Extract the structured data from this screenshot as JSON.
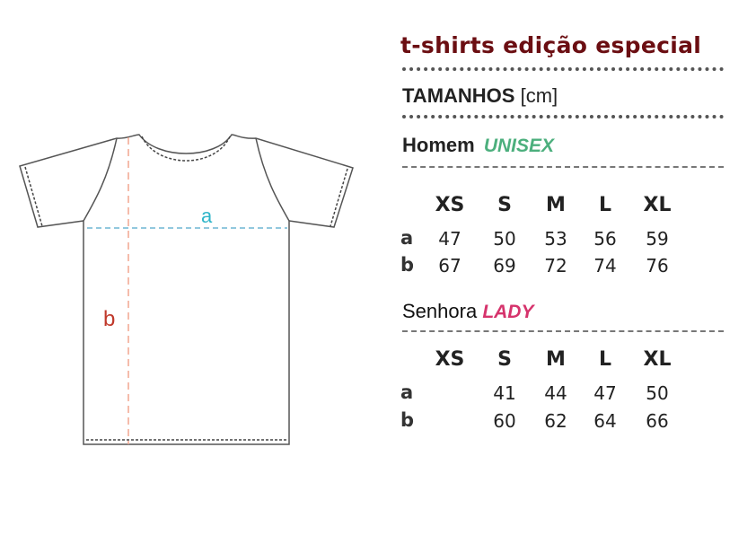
{
  "title": "t-shirts edição especial",
  "sizes_heading": {
    "label": "TAMANHOS",
    "unit": "[cm]"
  },
  "diagram": {
    "label_a": "a",
    "label_b": "b",
    "color_a": "#2fb5c9",
    "color_b": "#c0392b"
  },
  "men": {
    "label": "Homem",
    "tag": "UNISEX",
    "tag_color": "#4caf7d",
    "columns": [
      "XS",
      "S",
      "M",
      "L",
      "XL"
    ],
    "rows": [
      {
        "label": "a",
        "values": [
          "47",
          "50",
          "53",
          "56",
          "59"
        ]
      },
      {
        "label": "b",
        "values": [
          "67",
          "69",
          "72",
          "74",
          "76"
        ]
      }
    ]
  },
  "women": {
    "label": "Senhora",
    "tag": "LADY",
    "tag_color": "#d6336c",
    "columns": [
      "XS",
      "S",
      "M",
      "L",
      "XL"
    ],
    "rows": [
      {
        "label": "a",
        "values": [
          "",
          "41",
          "44",
          "47",
          "50"
        ]
      },
      {
        "label": "b",
        "values": [
          "",
          "60",
          "62",
          "64",
          "66"
        ]
      }
    ]
  }
}
